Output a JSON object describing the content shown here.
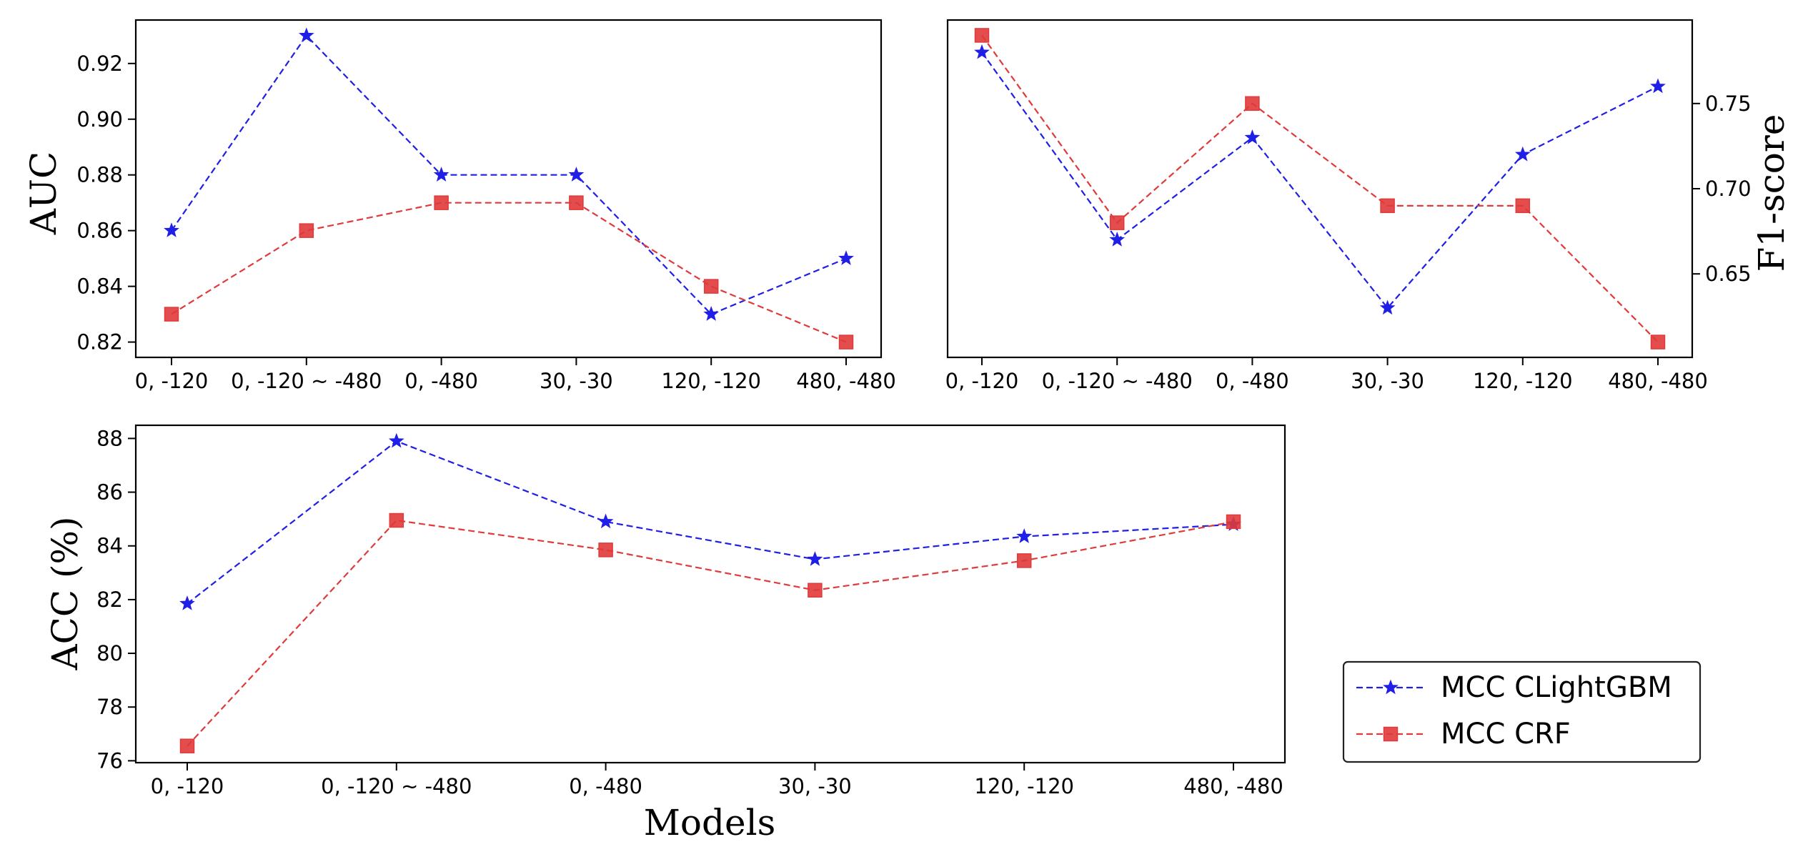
{
  "colors": {
    "clightgbm": "#1f1fe8",
    "crf": "#e03a3a"
  },
  "legend": {
    "series1": "MCC CLightGBM",
    "series2": "MCC CRF"
  },
  "chart_data": [
    {
      "id": "auc",
      "type": "line",
      "categories": [
        "0, -120",
        "0, -120 ~ -480",
        "0, -480",
        "30, -30",
        "120, -120",
        "480, -480"
      ],
      "x": [
        0,
        1,
        2,
        3,
        4,
        5
      ],
      "ylabel": "AUC",
      "ylabel_side": "left",
      "ylim": [
        0.8145,
        0.9356
      ],
      "yticks": [
        0.82,
        0.84,
        0.86,
        0.88,
        0.9,
        0.92
      ],
      "ytick_labels": [
        "0.82",
        "0.84",
        "0.86",
        "0.88",
        "0.90",
        "0.92"
      ],
      "series": [
        {
          "name": "MCC CLightGBM",
          "values": [
            0.86,
            0.93,
            0.88,
            0.88,
            0.83,
            0.85
          ]
        },
        {
          "name": "MCC CRF",
          "values": [
            0.83,
            0.86,
            0.87,
            0.87,
            0.84,
            0.82
          ]
        }
      ]
    },
    {
      "id": "f1",
      "type": "line",
      "categories": [
        "0, -120",
        "0, -120 ~ -480",
        "0, -480",
        "30, -30",
        "120, -120",
        "480, -480"
      ],
      "x": [
        0,
        1,
        2,
        3,
        4,
        5
      ],
      "ylabel": "F1-score",
      "ylabel_side": "right",
      "ylim": [
        0.601,
        0.799
      ],
      "yticks": [
        0.65,
        0.7,
        0.75
      ],
      "ytick_labels": [
        "0.65",
        "0.70",
        "0.75"
      ],
      "series": [
        {
          "name": "MCC CLightGBM",
          "values": [
            0.78,
            0.67,
            0.73,
            0.63,
            0.72,
            0.76
          ]
        },
        {
          "name": "MCC CRF",
          "values": [
            0.79,
            0.68,
            0.75,
            0.69,
            0.69,
            0.61
          ]
        }
      ]
    },
    {
      "id": "acc",
      "type": "line",
      "categories": [
        "0, -120",
        "0, -120 ~ -480",
        "0, -480",
        "30, -30",
        "120, -120",
        "480, -480"
      ],
      "x": [
        0,
        1,
        2,
        3,
        4,
        5
      ],
      "xlabel": "Models",
      "ylabel": "ACC (%)",
      "ylabel_side": "left",
      "ylim": [
        75.93,
        88.49
      ],
      "yticks": [
        76,
        78,
        80,
        82,
        84,
        86,
        88
      ],
      "ytick_labels": [
        "76",
        "78",
        "80",
        "82",
        "84",
        "86",
        "88"
      ],
      "series": [
        {
          "name": "MCC CLightGBM",
          "values": [
            81.85,
            87.9,
            84.9,
            83.5,
            84.35,
            84.8
          ]
        },
        {
          "name": "MCC CRF",
          "values": [
            76.55,
            84.95,
            83.85,
            82.35,
            83.45,
            84.9
          ]
        }
      ]
    }
  ]
}
